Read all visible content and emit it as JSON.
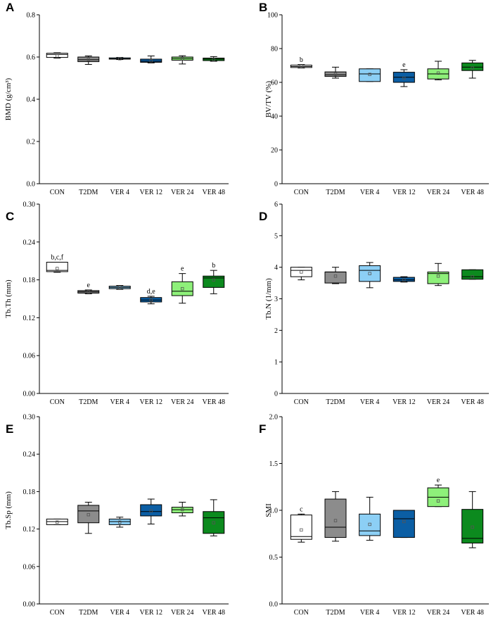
{
  "colors": {
    "CON": "#ffffff",
    "T2DM": "#8c8c8c",
    "VER 4": "#8ccff5",
    "VER 12": "#0b5ea4",
    "VER 24": "#8ef07a",
    "VER 48": "#0c8a1e"
  },
  "chart_data": [
    {
      "panel": "A",
      "type": "box",
      "ylabel": "BMD (g/cm³)",
      "ylim": [
        0,
        0.8
      ],
      "yticks": [
        "0.0",
        "0.2",
        "0.4",
        "0.6",
        "0.8"
      ],
      "categories": [
        "CON",
        "T2DM",
        "VER 4",
        "VER 12",
        "VER 24",
        "VER 48"
      ],
      "boxes": [
        {
          "min": 0.595,
          "q1": 0.598,
          "median": 0.612,
          "q3": 0.618,
          "max": 0.62,
          "mean": 0.605,
          "label": ""
        },
        {
          "min": 0.565,
          "q1": 0.578,
          "median": 0.587,
          "q3": 0.6,
          "max": 0.605,
          "mean": 0.588,
          "label": ""
        },
        {
          "min": 0.588,
          "q1": 0.59,
          "median": 0.592,
          "q3": 0.596,
          "max": 0.598,
          "mean": 0.592,
          "label": ""
        },
        {
          "min": 0.572,
          "q1": 0.575,
          "median": 0.58,
          "q3": 0.59,
          "max": 0.605,
          "mean": 0.582,
          "label": ""
        },
        {
          "min": 0.567,
          "q1": 0.585,
          "median": 0.593,
          "q3": 0.6,
          "max": 0.606,
          "mean": 0.592,
          "label": ""
        },
        {
          "min": 0.58,
          "q1": 0.583,
          "median": 0.59,
          "q3": 0.595,
          "max": 0.602,
          "mean": 0.588,
          "label": ""
        }
      ]
    },
    {
      "panel": "B",
      "type": "box",
      "ylabel": "BV/TV (%)",
      "ylim": [
        0,
        100
      ],
      "yticks": [
        "0",
        "20",
        "40",
        "60",
        "80",
        "100"
      ],
      "categories": [
        "CON",
        "T2DM",
        "VER 4",
        "VER 12",
        "VER 24",
        "VER 48"
      ],
      "boxes": [
        {
          "min": 68.5,
          "q1": 68.8,
          "median": 69.4,
          "q3": 70.2,
          "max": 70.5,
          "mean": 69.5,
          "label": "b"
        },
        {
          "min": 62.5,
          "q1": 63.5,
          "median": 64.5,
          "q3": 66.2,
          "max": 69.0,
          "mean": 64.8,
          "label": ""
        },
        {
          "min": 60.5,
          "q1": 60.5,
          "median": 65.0,
          "q3": 68.0,
          "max": 68.0,
          "mean": 64.7,
          "label": ""
        },
        {
          "min": 57.5,
          "q1": 60.0,
          "median": 63.0,
          "q3": 66.0,
          "max": 67.5,
          "mean": 62.5,
          "label": "e"
        },
        {
          "min": 61.5,
          "q1": 62.0,
          "median": 65.0,
          "q3": 68.0,
          "max": 72.5,
          "mean": 65.5,
          "label": ""
        },
        {
          "min": 62.5,
          "q1": 67.0,
          "median": 69.0,
          "q3": 71.5,
          "max": 73.0,
          "mean": 68.5,
          "label": ""
        }
      ]
    },
    {
      "panel": "C",
      "type": "box",
      "ylabel": "Tb.Th (mm)",
      "ylim": [
        0,
        0.3
      ],
      "yticks": [
        "0.00",
        "0.06",
        "0.12",
        "0.18",
        "0.24",
        "0.30"
      ],
      "categories": [
        "CON",
        "T2DM",
        "VER 4",
        "VER 12",
        "VER 24",
        "VER 48"
      ],
      "boxes": [
        {
          "min": 0.192,
          "q1": 0.193,
          "median": 0.195,
          "q3": 0.208,
          "max": 0.208,
          "mean": 0.198,
          "label": "b,c,f"
        },
        {
          "min": 0.158,
          "q1": 0.159,
          "median": 0.161,
          "q3": 0.163,
          "max": 0.164,
          "mean": 0.161,
          "label": "e"
        },
        {
          "min": 0.165,
          "q1": 0.166,
          "median": 0.168,
          "q3": 0.17,
          "max": 0.171,
          "mean": 0.168,
          "label": ""
        },
        {
          "min": 0.142,
          "q1": 0.145,
          "median": 0.148,
          "q3": 0.152,
          "max": 0.154,
          "mean": 0.148,
          "label": "d,e"
        },
        {
          "min": 0.143,
          "q1": 0.155,
          "median": 0.162,
          "q3": 0.177,
          "max": 0.19,
          "mean": 0.166,
          "label": "e"
        },
        {
          "min": 0.158,
          "q1": 0.168,
          "median": 0.183,
          "q3": 0.186,
          "max": 0.195,
          "mean": 0.18,
          "label": "b"
        }
      ]
    },
    {
      "panel": "D",
      "type": "box",
      "ylabel": "Tb.N (1/mm)",
      "ylim": [
        0,
        6
      ],
      "yticks": [
        "0",
        "1",
        "2",
        "3",
        "4",
        "5",
        "6"
      ],
      "categories": [
        "CON",
        "T2DM",
        "VER 4",
        "VER 12",
        "VER 24",
        "VER 48"
      ],
      "boxes": [
        {
          "min": 3.6,
          "q1": 3.7,
          "median": 3.9,
          "q3": 4.0,
          "max": 4.0,
          "mean": 3.85,
          "label": ""
        },
        {
          "min": 3.48,
          "q1": 3.5,
          "median": 3.85,
          "q3": 3.85,
          "max": 4.0,
          "mean": 3.72,
          "label": ""
        },
        {
          "min": 3.35,
          "q1": 3.55,
          "median": 3.9,
          "q3": 4.05,
          "max": 4.15,
          "mean": 3.8,
          "label": ""
        },
        {
          "min": 3.53,
          "q1": 3.55,
          "median": 3.6,
          "q3": 3.68,
          "max": 3.7,
          "mean": 3.6,
          "label": ""
        },
        {
          "min": 3.42,
          "q1": 3.48,
          "median": 3.8,
          "q3": 3.85,
          "max": 4.12,
          "mean": 3.72,
          "label": ""
        },
        {
          "min": 3.62,
          "q1": 3.62,
          "median": 3.7,
          "q3": 3.92,
          "max": 3.92,
          "mean": 3.7,
          "label": ""
        }
      ]
    },
    {
      "panel": "E",
      "type": "box",
      "ylabel": "Tb.Sp (mm)",
      "ylim": [
        0,
        0.3
      ],
      "yticks": [
        "0.00",
        "0.06",
        "0.12",
        "0.18",
        "0.24",
        "0.30"
      ],
      "categories": [
        "CON",
        "T2DM",
        "VER 4",
        "VER 12",
        "VER 24",
        "VER 48"
      ],
      "boxes": [
        {
          "min": 0.127,
          "q1": 0.127,
          "median": 0.132,
          "q3": 0.136,
          "max": 0.136,
          "mean": 0.131,
          "label": ""
        },
        {
          "min": 0.113,
          "q1": 0.13,
          "median": 0.149,
          "q3": 0.158,
          "max": 0.163,
          "mean": 0.143,
          "label": ""
        },
        {
          "min": 0.123,
          "q1": 0.127,
          "median": 0.132,
          "q3": 0.136,
          "max": 0.139,
          "mean": 0.131,
          "label": ""
        },
        {
          "min": 0.128,
          "q1": 0.141,
          "median": 0.148,
          "q3": 0.159,
          "max": 0.168,
          "mean": 0.149,
          "label": ""
        },
        {
          "min": 0.141,
          "q1": 0.146,
          "median": 0.151,
          "q3": 0.155,
          "max": 0.163,
          "mean": 0.151,
          "label": ""
        },
        {
          "min": 0.109,
          "q1": 0.113,
          "median": 0.138,
          "q3": 0.148,
          "max": 0.167,
          "mean": 0.13,
          "label": ""
        }
      ]
    },
    {
      "panel": "F",
      "type": "box",
      "ylabel": "SMI",
      "ylim": [
        0,
        2
      ],
      "yticks": [
        "0.0",
        "0.5",
        "1.0",
        "1.5",
        "2.0"
      ],
      "categories": [
        "CON",
        "T2DM",
        "VER 4",
        "VER 12",
        "VER 24",
        "VER 48"
      ],
      "boxes": [
        {
          "min": 0.66,
          "q1": 0.69,
          "median": 0.72,
          "q3": 0.95,
          "max": 0.96,
          "mean": 0.79,
          "label": "c"
        },
        {
          "min": 0.67,
          "q1": 0.71,
          "median": 0.82,
          "q3": 1.12,
          "max": 1.2,
          "mean": 0.89,
          "label": ""
        },
        {
          "min": 0.68,
          "q1": 0.73,
          "median": 0.78,
          "q3": 0.96,
          "max": 1.14,
          "mean": 0.85,
          "label": ""
        },
        {
          "min": 0.71,
          "q1": 0.71,
          "median": 0.91,
          "q3": 1.0,
          "max": 1.0,
          "mean": 0.88,
          "label": ""
        },
        {
          "min": 1.04,
          "q1": 1.04,
          "median": 1.14,
          "q3": 1.24,
          "max": 1.27,
          "mean": 1.1,
          "label": "e"
        },
        {
          "min": 0.6,
          "q1": 0.65,
          "median": 0.7,
          "q3": 1.01,
          "max": 1.2,
          "mean": 0.82,
          "label": ""
        }
      ]
    }
  ]
}
